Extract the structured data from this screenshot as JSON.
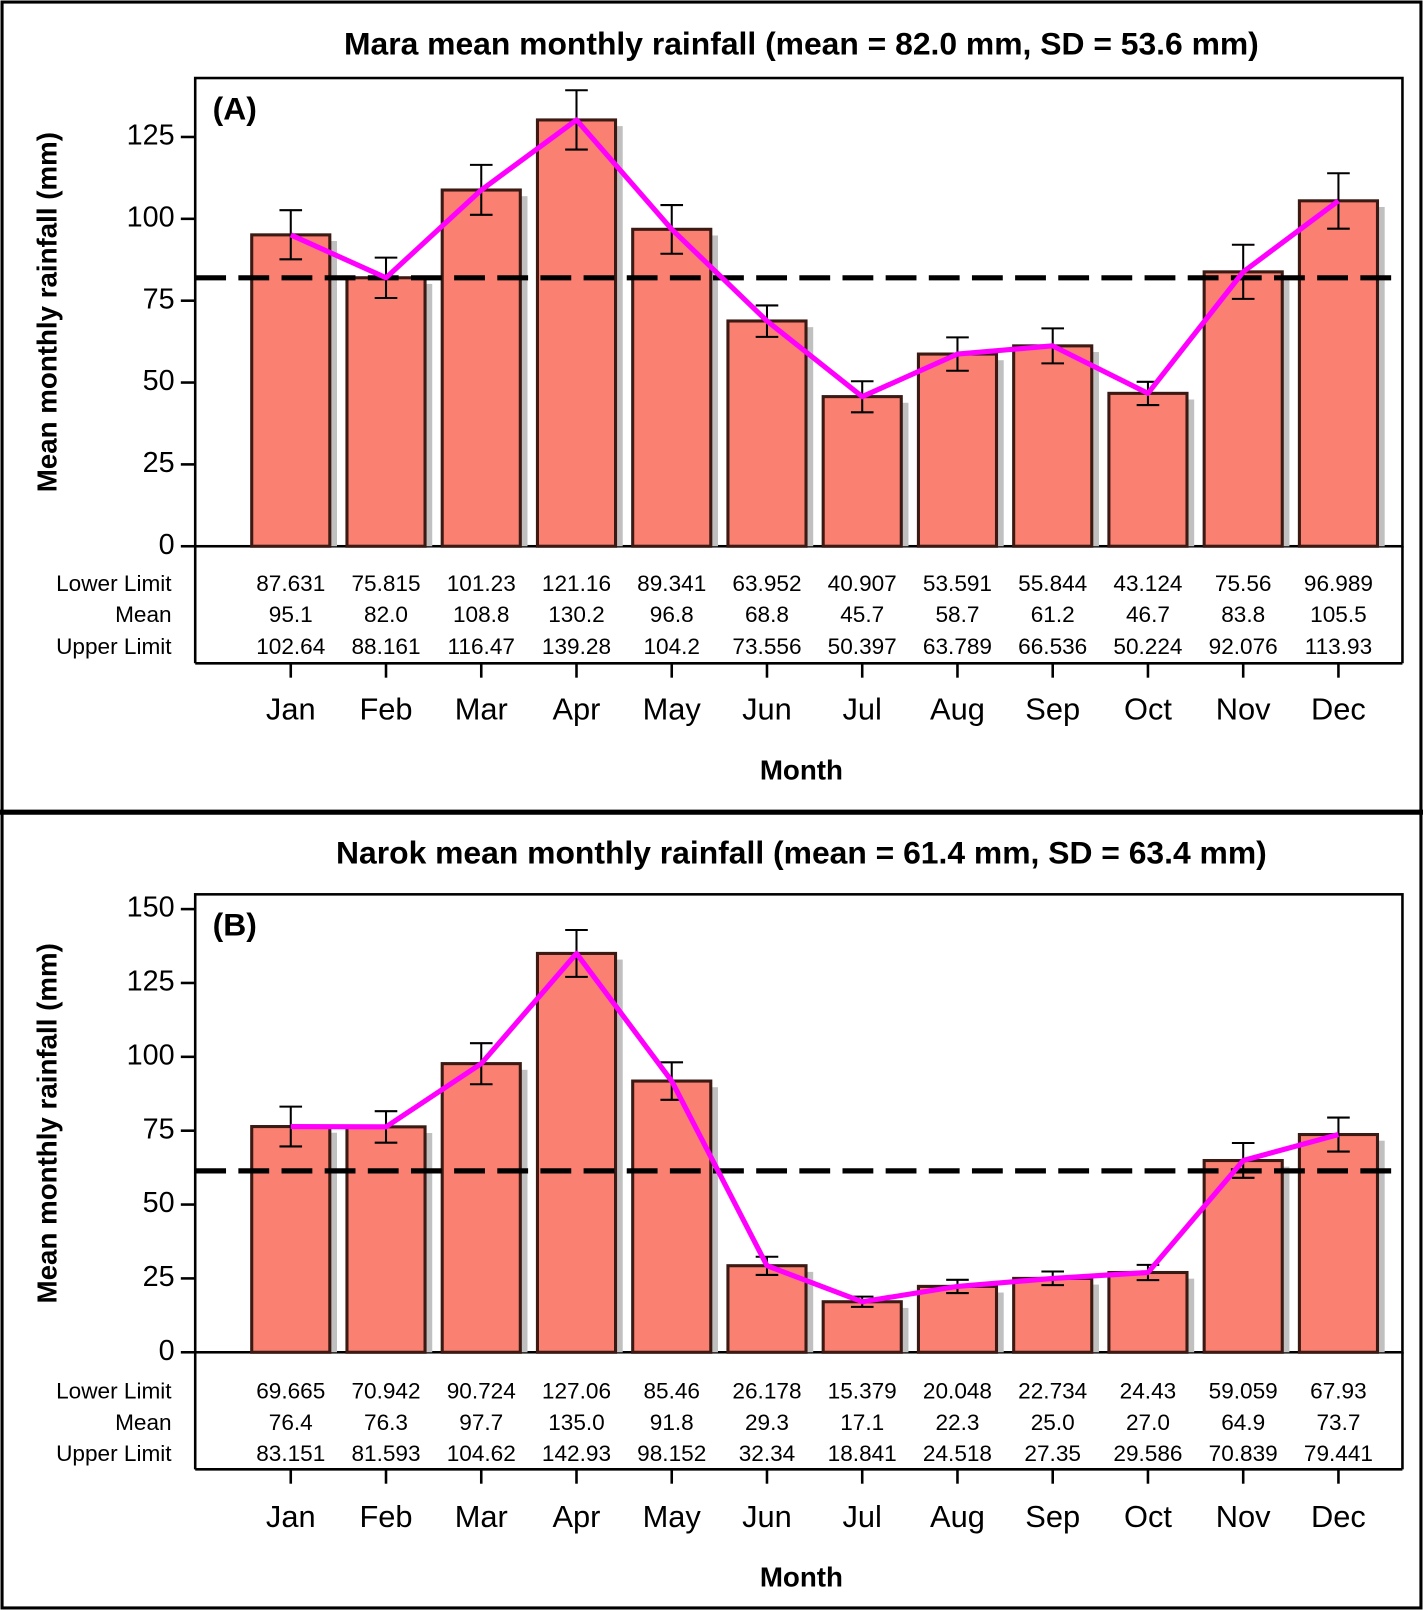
{
  "chart_data": [
    {
      "type": "bar",
      "title": "Mara mean monthly rainfall (mean = 82.0 mm, SD = 53.6 mm)",
      "panel_label": "(A)",
      "x_label": "Month",
      "y_label": "Mean monthly rainfall (mm)",
      "categories": [
        "Jan",
        "Feb",
        "Mar",
        "Apr",
        "May",
        "Jun",
        "Jul",
        "Aug",
        "Sep",
        "Oct",
        "Nov",
        "Dec"
      ],
      "values": [
        95.1,
        82.0,
        108.8,
        130.2,
        96.8,
        68.8,
        45.7,
        58.7,
        61.2,
        46.7,
        83.8,
        105.5
      ],
      "value_labels": [
        "95.1",
        "82.0",
        "108.8",
        "130.2",
        "96.8",
        "68.8",
        "45.7",
        "58.7",
        "61.2",
        "46.7",
        "83.8",
        "105.5"
      ],
      "lower_limits": [
        87.631,
        75.815,
        101.23,
        121.16,
        89.341,
        63.952,
        40.907,
        53.591,
        55.844,
        43.124,
        75.56,
        96.989
      ],
      "upper_limits": [
        102.64,
        88.161,
        116.47,
        139.28,
        104.2,
        73.556,
        50.397,
        63.789,
        66.536,
        50.224,
        92.076,
        113.93
      ],
      "table_row_labels": [
        "Lower Limit",
        "Mean",
        "Upper Limit"
      ],
      "reference_line": 82.0,
      "color": "#fa8072",
      "line_color": "#ff00ff",
      "ylim": [
        0,
        143
      ],
      "yticks": [
        0,
        25,
        50,
        75,
        100,
        125
      ]
    },
    {
      "type": "bar",
      "title": "Narok mean monthly rainfall (mean = 61.4 mm, SD = 63.4 mm)",
      "panel_label": "(B)",
      "x_label": "Month",
      "y_label": "Mean monthly rainfall (mm)",
      "categories": [
        "Jan",
        "Feb",
        "Mar",
        "Apr",
        "May",
        "Jun",
        "Jul",
        "Aug",
        "Sep",
        "Oct",
        "Nov",
        "Dec"
      ],
      "values": [
        76.4,
        76.3,
        97.7,
        135.0,
        91.8,
        29.3,
        17.1,
        22.3,
        25.0,
        27.0,
        64.9,
        73.7
      ],
      "value_labels": [
        "76.4",
        "76.3",
        "97.7",
        "135.0",
        "91.8",
        "29.3",
        "17.1",
        "22.3",
        "25.0",
        "27.0",
        "64.9",
        "73.7"
      ],
      "lower_limits": [
        69.665,
        70.942,
        90.724,
        127.06,
        85.46,
        26.178,
        15.379,
        20.048,
        22.734,
        24.43,
        59.059,
        67.93
      ],
      "upper_limits": [
        83.151,
        81.593,
        104.62,
        142.93,
        98.152,
        32.34,
        18.841,
        24.518,
        27.35,
        29.586,
        70.839,
        79.441
      ],
      "table_row_labels": [
        "Lower Limit",
        "Mean",
        "Upper Limit"
      ],
      "reference_line": 61.4,
      "color": "#fa8072",
      "line_color": "#ff00ff",
      "ylim": [
        0,
        155
      ],
      "yticks": [
        0,
        25,
        50,
        75,
        100,
        125,
        150
      ]
    }
  ]
}
